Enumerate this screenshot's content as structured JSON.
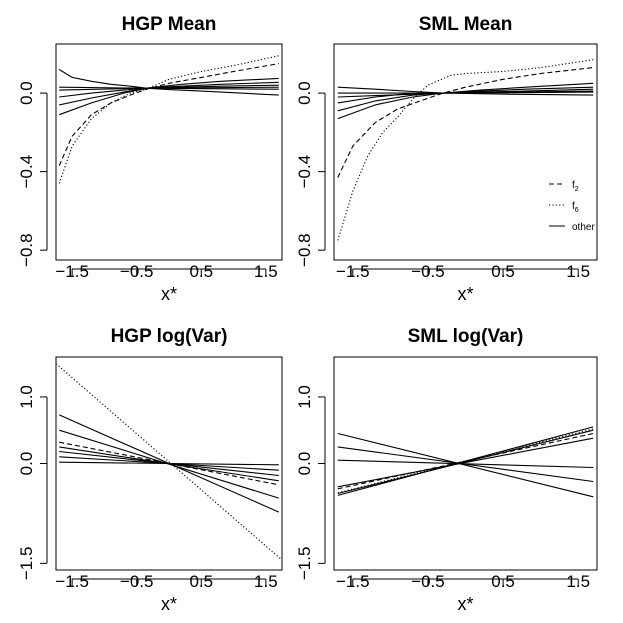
{
  "chart_data": [
    {
      "type": "line",
      "title": "HGP Mean",
      "xlabel": "x*",
      "ylabel": "",
      "xlim": [
        -1.75,
        1.75
      ],
      "ylim": [
        -0.85,
        0.25
      ],
      "x_ticks": [
        -1.5,
        -0.5,
        0.5,
        1.5
      ],
      "x_tick_labels": [
        "−1.5",
        "−0.5",
        "0.5",
        "1.5"
      ],
      "y_ticks": [
        0.0,
        -0.4,
        -0.8
      ],
      "y_tick_labels": [
        "0.0",
        "−0.4",
        "−0.8"
      ],
      "series": [
        {
          "name": "f2",
          "style": "dashed",
          "x": [
            -1.7,
            -1.5,
            -1.2,
            -0.9,
            -0.6,
            -0.35,
            0.0,
            0.5,
            1.0,
            1.7
          ],
          "y": [
            -0.37,
            -0.22,
            -0.11,
            -0.05,
            -0.01,
            0.02,
            0.05,
            0.08,
            0.11,
            0.15
          ]
        },
        {
          "name": "f6",
          "style": "dotted",
          "x": [
            -1.7,
            -1.5,
            -1.2,
            -0.9,
            -0.6,
            -0.35,
            0.0,
            0.5,
            1.0,
            1.7
          ],
          "y": [
            -0.46,
            -0.27,
            -0.13,
            -0.05,
            0.0,
            0.02,
            0.07,
            0.11,
            0.14,
            0.19
          ]
        },
        {
          "name": "other",
          "style": "solid",
          "x": [
            -1.7,
            -1.5,
            -1.2,
            -0.9,
            -0.6,
            -0.35,
            0.0,
            0.5,
            1.0,
            1.7
          ],
          "y": [
            0.12,
            0.08,
            0.06,
            0.045,
            0.035,
            0.025,
            0.018,
            0.01,
            0.002,
            -0.01
          ]
        },
        {
          "name": "other",
          "style": "solid",
          "x": [
            -1.7,
            -1.2,
            -0.7,
            -0.35,
            0.2,
            0.8,
            1.7
          ],
          "y": [
            -0.11,
            -0.05,
            0.0,
            0.025,
            0.045,
            0.06,
            0.075
          ]
        },
        {
          "name": "other",
          "style": "solid",
          "x": [
            -1.7,
            -1.2,
            -0.7,
            -0.35,
            0.2,
            0.8,
            1.7
          ],
          "y": [
            -0.06,
            -0.025,
            0.005,
            0.025,
            0.035,
            0.045,
            0.055
          ]
        },
        {
          "name": "other",
          "style": "solid",
          "x": [
            -1.7,
            -1.2,
            -0.7,
            -0.35,
            0.2,
            0.8,
            1.7
          ],
          "y": [
            -0.02,
            0.0,
            0.015,
            0.025,
            0.03,
            0.035,
            0.04
          ]
        },
        {
          "name": "other",
          "style": "solid",
          "x": [
            -1.7,
            -0.35,
            1.7
          ],
          "y": [
            0.03,
            0.025,
            0.02
          ]
        },
        {
          "name": "other",
          "style": "solid",
          "x": [
            -1.7,
            -0.35,
            1.7
          ],
          "y": [
            0.015,
            0.025,
            0.03
          ]
        }
      ]
    },
    {
      "type": "line",
      "title": "SML Mean",
      "xlabel": "x*",
      "ylabel": "",
      "xlim": [
        -1.75,
        1.75
      ],
      "ylim": [
        -0.85,
        0.25
      ],
      "x_ticks": [
        -1.5,
        -0.5,
        0.5,
        1.5
      ],
      "x_tick_labels": [
        "−1.5",
        "−0.5",
        "0.5",
        "1.5"
      ],
      "y_ticks": [
        0.0,
        -0.4,
        -0.8
      ],
      "y_tick_labels": [
        "0.0",
        "−0.4",
        "−0.8"
      ],
      "legend": {
        "position": "right",
        "entries": [
          {
            "label": "f",
            "sub": "2",
            "style": "dashed"
          },
          {
            "label": "f",
            "sub": "6",
            "style": "dotted"
          },
          {
            "label": "other",
            "sub": "",
            "style": "solid"
          }
        ]
      },
      "series": [
        {
          "name": "f2",
          "style": "dashed",
          "x": [
            -1.7,
            -1.5,
            -1.2,
            -0.9,
            -0.6,
            -0.3,
            0.0,
            0.5,
            1.0,
            1.7
          ],
          "y": [
            -0.43,
            -0.27,
            -0.15,
            -0.08,
            -0.04,
            0.0,
            0.03,
            0.07,
            0.1,
            0.13
          ]
        },
        {
          "name": "f6",
          "style": "dotted",
          "x": [
            -1.7,
            -1.5,
            -1.3,
            -1.1,
            -0.9,
            -0.7,
            -0.5,
            -0.2,
            0.0,
            0.5,
            1.0,
            1.7
          ],
          "y": [
            -0.75,
            -0.5,
            -0.32,
            -0.2,
            -0.12,
            -0.03,
            0.04,
            0.09,
            0.1,
            0.11,
            0.13,
            0.17
          ]
        },
        {
          "name": "other",
          "style": "solid",
          "x": [
            -1.7,
            -1.2,
            -0.7,
            -0.3,
            0.2,
            0.8,
            1.7
          ],
          "y": [
            -0.13,
            -0.06,
            -0.02,
            0.0,
            0.015,
            0.03,
            0.05
          ]
        },
        {
          "name": "other",
          "style": "solid",
          "x": [
            -1.7,
            -1.2,
            -0.7,
            -0.3,
            0.2,
            0.8,
            1.7
          ],
          "y": [
            -0.09,
            -0.04,
            -0.01,
            0.0,
            0.01,
            0.02,
            0.03
          ]
        },
        {
          "name": "other",
          "style": "solid",
          "x": [
            -1.7,
            -1.2,
            -0.7,
            -0.3,
            0.2,
            0.8,
            1.7
          ],
          "y": [
            -0.05,
            -0.02,
            0.0,
            0.0,
            0.005,
            0.01,
            0.02
          ]
        },
        {
          "name": "other",
          "style": "solid",
          "x": [
            -1.7,
            -1.2,
            -0.7,
            -0.3,
            0.5,
            1.7
          ],
          "y": [
            0.03,
            0.02,
            0.008,
            0.0,
            -0.005,
            -0.01
          ]
        },
        {
          "name": "other",
          "style": "solid",
          "x": [
            -1.7,
            -0.3,
            1.7
          ],
          "y": [
            0.0,
            0.0,
            0.01
          ]
        },
        {
          "name": "other",
          "style": "solid",
          "x": [
            -1.7,
            -0.3,
            1.7
          ],
          "y": [
            -0.02,
            0.0,
            0.005
          ]
        }
      ]
    },
    {
      "type": "line",
      "title": "HGP log(Var)",
      "xlabel": "x*",
      "ylabel": "",
      "xlim": [
        -1.75,
        1.75
      ],
      "ylim": [
        -1.6,
        1.6
      ],
      "x_ticks": [
        -1.5,
        -0.5,
        0.5,
        1.5
      ],
      "x_tick_labels": [
        "−1.5",
        "−0.5",
        "0.5",
        "1.5"
      ],
      "y_ticks": [
        1.0,
        0.0,
        -1.5
      ],
      "y_tick_labels": [
        "1.0",
        "0.0",
        "−1.5"
      ],
      "series": [
        {
          "name": "f6",
          "style": "dotted",
          "x": [
            -1.75,
            1.75
          ],
          "y": [
            1.5,
            -1.45
          ]
        },
        {
          "name": "f2",
          "style": "dashed",
          "x": [
            -1.7,
            1.7
          ],
          "y": [
            0.32,
            -0.32
          ]
        },
        {
          "name": "other",
          "style": "solid",
          "x": [
            -1.7,
            1.7
          ],
          "y": [
            0.73,
            -0.73
          ]
        },
        {
          "name": "other",
          "style": "solid",
          "x": [
            -1.7,
            1.7
          ],
          "y": [
            0.5,
            -0.52
          ]
        },
        {
          "name": "other",
          "style": "solid",
          "x": [
            -1.7,
            1.7
          ],
          "y": [
            0.25,
            -0.26
          ]
        },
        {
          "name": "other",
          "style": "solid",
          "x": [
            -1.7,
            1.7
          ],
          "y": [
            0.18,
            -0.18
          ]
        },
        {
          "name": "other",
          "style": "solid",
          "x": [
            -1.7,
            1.7
          ],
          "y": [
            0.1,
            -0.1
          ]
        },
        {
          "name": "other",
          "style": "solid",
          "x": [
            -1.7,
            1.7
          ],
          "y": [
            0.02,
            -0.02
          ]
        }
      ]
    },
    {
      "type": "line",
      "title": "SML log(Var)",
      "xlabel": "x*",
      "ylabel": "",
      "xlim": [
        -1.75,
        1.75
      ],
      "ylim": [
        -1.6,
        1.6
      ],
      "x_ticks": [
        -1.5,
        -0.5,
        0.5,
        1.5
      ],
      "x_tick_labels": [
        "−1.5",
        "−0.5",
        "0.5",
        "1.5"
      ],
      "y_ticks": [
        1.0,
        0.0,
        -1.5
      ],
      "y_tick_labels": [
        "1.0",
        "0.0",
        "−1.5"
      ],
      "series": [
        {
          "name": "f2",
          "style": "dashed",
          "x": [
            -1.7,
            1.7
          ],
          "y": [
            -0.38,
            0.45
          ]
        },
        {
          "name": "f6",
          "style": "dotted",
          "x": [
            -1.7,
            1.7
          ],
          "y": [
            -0.44,
            0.52
          ]
        },
        {
          "name": "other",
          "style": "solid",
          "x": [
            -1.7,
            1.7
          ],
          "y": [
            -0.45,
            0.5
          ]
        },
        {
          "name": "other",
          "style": "solid",
          "x": [
            -1.7,
            1.7
          ],
          "y": [
            -0.48,
            0.55
          ]
        },
        {
          "name": "other",
          "style": "solid",
          "x": [
            -1.7,
            1.7
          ],
          "y": [
            -0.35,
            0.38
          ]
        },
        {
          "name": "other",
          "style": "solid",
          "x": [
            -1.7,
            1.7
          ],
          "y": [
            0.45,
            -0.5
          ]
        },
        {
          "name": "other",
          "style": "solid",
          "x": [
            -1.7,
            1.7
          ],
          "y": [
            0.25,
            -0.27
          ]
        },
        {
          "name": "other",
          "style": "solid",
          "x": [
            -1.7,
            1.7
          ],
          "y": [
            0.05,
            -0.06
          ]
        }
      ]
    }
  ]
}
